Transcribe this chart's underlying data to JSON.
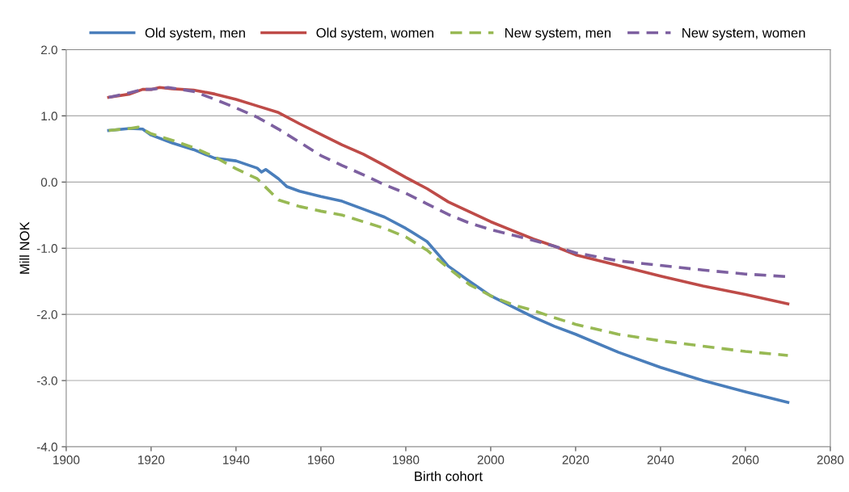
{
  "chart_data": {
    "type": "line",
    "xlabel": "Birth cohort",
    "ylabel": "Mill NOK",
    "xlim": [
      1900,
      2080
    ],
    "xticks": [
      1900,
      1920,
      1940,
      1960,
      1980,
      2000,
      2020,
      2040,
      2060,
      2080
    ],
    "ylim": [
      -4.0,
      2.0
    ],
    "yticks": [
      {
        "value": -4,
        "label": "-4.0"
      },
      {
        "value": -3,
        "label": "-3.0"
      },
      {
        "value": -2,
        "label": "-2.0"
      },
      {
        "value": -1,
        "label": "-1.0"
      },
      {
        "value": 0,
        "label": "0.0"
      },
      {
        "value": 1,
        "label": "1.0"
      },
      {
        "value": 2,
        "label": "2.0"
      }
    ],
    "grid": "y",
    "legend": "top",
    "marker": "none",
    "series": [
      {
        "name": "Old system, men",
        "color": "#4a7ebb",
        "line_style": "solid",
        "x": [
          1910,
          1915,
          1918,
          1920,
          1925,
          1930,
          1935,
          1940,
          1945,
          1946,
          1947,
          1950,
          1952,
          1955,
          1960,
          1965,
          1970,
          1975,
          1980,
          1985,
          1990,
          1995,
          2000,
          2005,
          2010,
          2015,
          2020,
          2030,
          2040,
          2050,
          2060,
          2070
        ],
        "values": [
          0.78,
          0.81,
          0.8,
          0.71,
          0.59,
          0.49,
          0.36,
          0.32,
          0.21,
          0.15,
          0.19,
          0.05,
          -0.07,
          -0.14,
          -0.22,
          -0.29,
          -0.41,
          -0.53,
          -0.7,
          -0.9,
          -1.27,
          -1.5,
          -1.72,
          -1.88,
          -2.04,
          -2.18,
          -2.3,
          -2.57,
          -2.8,
          -3.0,
          -3.17,
          -3.33
        ]
      },
      {
        "name": "Old system, women",
        "color": "#be4b48",
        "line_style": "solid",
        "x": [
          1910,
          1915,
          1918,
          1920,
          1922,
          1925,
          1930,
          1935,
          1940,
          1945,
          1950,
          1955,
          1960,
          1965,
          1970,
          1975,
          1980,
          1985,
          1990,
          1995,
          2000,
          2005,
          2010,
          2015,
          2020,
          2030,
          2040,
          2050,
          2060,
          2070
        ],
        "values": [
          1.28,
          1.33,
          1.4,
          1.4,
          1.43,
          1.41,
          1.39,
          1.33,
          1.25,
          1.15,
          1.05,
          0.88,
          0.72,
          0.56,
          0.42,
          0.25,
          0.07,
          -0.1,
          -0.3,
          -0.45,
          -0.6,
          -0.73,
          -0.86,
          -0.97,
          -1.1,
          -1.26,
          -1.42,
          -1.57,
          -1.7,
          -1.84
        ]
      },
      {
        "name": "New system, men",
        "color": "#98b954",
        "line_style": "dashed",
        "x": [
          1910,
          1915,
          1917,
          1920,
          1925,
          1930,
          1935,
          1940,
          1945,
          1947,
          1950,
          1955,
          1960,
          1965,
          1970,
          1975,
          1980,
          1985,
          1990,
          1995,
          2000,
          2005,
          2010,
          2015,
          2020,
          2030,
          2040,
          2050,
          2060,
          2070
        ],
        "values": [
          0.78,
          0.81,
          0.83,
          0.73,
          0.63,
          0.52,
          0.38,
          0.2,
          0.05,
          -0.08,
          -0.27,
          -0.37,
          -0.44,
          -0.5,
          -0.6,
          -0.7,
          -0.83,
          -1.03,
          -1.3,
          -1.55,
          -1.72,
          -1.85,
          -1.94,
          -2.05,
          -2.15,
          -2.3,
          -2.4,
          -2.48,
          -2.56,
          -2.62
        ]
      },
      {
        "name": "New system, women",
        "color": "#7d60a0",
        "line_style": "dashed",
        "x": [
          1910,
          1915,
          1918,
          1920,
          1924,
          1930,
          1935,
          1940,
          1945,
          1950,
          1955,
          1960,
          1965,
          1970,
          1975,
          1980,
          1985,
          1990,
          1995,
          2000,
          2005,
          2010,
          2015,
          2020,
          2030,
          2040,
          2050,
          2060,
          2070
        ],
        "values": [
          1.28,
          1.35,
          1.4,
          1.4,
          1.43,
          1.37,
          1.25,
          1.12,
          0.98,
          0.8,
          0.6,
          0.4,
          0.25,
          0.11,
          -0.04,
          -0.17,
          -0.33,
          -0.49,
          -0.62,
          -0.72,
          -0.8,
          -0.88,
          -0.97,
          -1.07,
          -1.19,
          -1.26,
          -1.33,
          -1.39,
          -1.43
        ]
      }
    ]
  }
}
